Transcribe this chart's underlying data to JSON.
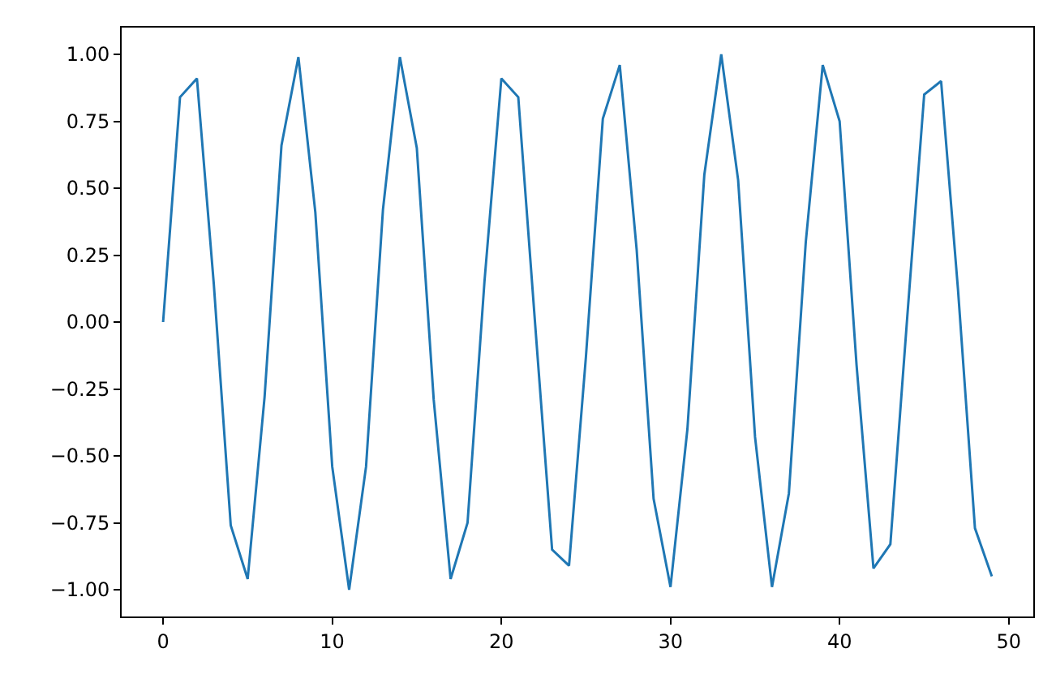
{
  "chart_data": {
    "type": "line",
    "x": [
      0,
      1,
      2,
      3,
      4,
      5,
      6,
      7,
      8,
      9,
      10,
      11,
      12,
      13,
      14,
      15,
      16,
      17,
      18,
      19,
      20,
      21,
      22,
      23,
      24,
      25,
      26,
      27,
      28,
      29,
      30,
      31,
      32,
      33,
      34,
      35,
      36,
      37,
      38,
      39,
      40,
      41,
      42,
      43,
      44,
      45,
      46,
      47,
      48,
      49
    ],
    "series": [
      {
        "color": "#1f77b4",
        "values": [
          0,
          0.84,
          0.91,
          0.14,
          -0.76,
          -0.96,
          -0.28,
          0.66,
          0.99,
          0.41,
          -0.54,
          -1.0,
          -0.54,
          0.42,
          0.99,
          0.65,
          -0.29,
          -0.96,
          -0.75,
          0.15,
          0.91,
          0.84,
          -0.01,
          -0.85,
          -0.91,
          -0.13,
          0.76,
          0.96,
          0.27,
          -0.66,
          -0.99,
          -0.4,
          0.55,
          1.0,
          0.53,
          -0.43,
          -0.99,
          -0.64,
          0.3,
          0.96,
          0.75,
          -0.16,
          -0.92,
          -0.83,
          0.02,
          0.85,
          0.9,
          0.12,
          -0.77,
          -0.95
        ]
      }
    ],
    "xlim": [
      -2.45,
      51.45
    ],
    "ylim": [
      -1.1,
      1.1
    ],
    "xticks": [
      0,
      10,
      20,
      30,
      40,
      50
    ],
    "yticks": [
      {
        "value": -1,
        "label": "−1.00"
      },
      {
        "value": -0.75,
        "label": "−0.75"
      },
      {
        "value": -0.5,
        "label": "−0.50"
      },
      {
        "value": -0.25,
        "label": "−0.25"
      },
      {
        "value": 0,
        "label": "0.00"
      },
      {
        "value": 0.25,
        "label": "0.25"
      },
      {
        "value": 0.5,
        "label": "0.50"
      },
      {
        "value": 0.75,
        "label": "0.75"
      },
      {
        "value": 1,
        "label": "1.00"
      }
    ],
    "marker": "none",
    "line_style": "solid"
  }
}
